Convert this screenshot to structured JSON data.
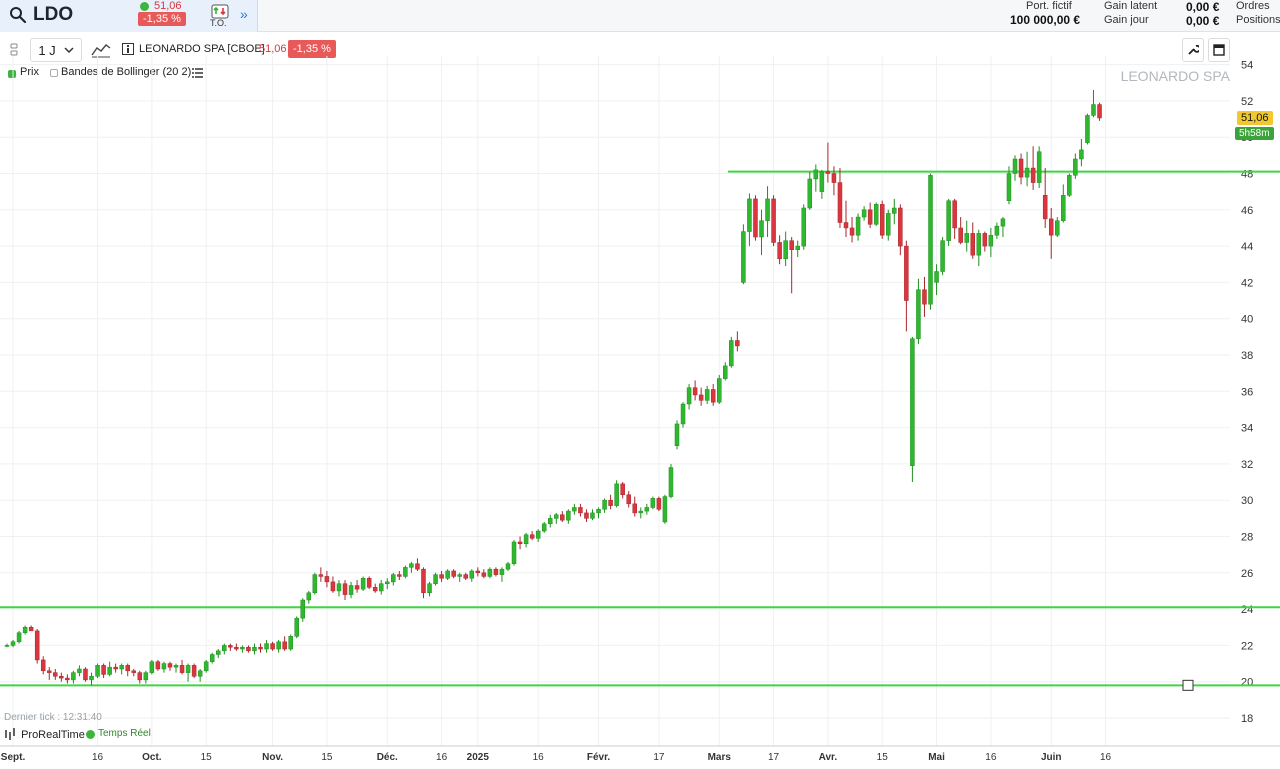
{
  "header": {
    "symbol": "LDO",
    "price": "51,06",
    "change": "-1,35 %",
    "to_label": "T.O.",
    "portfolio": {
      "label_port": "Port. fictif",
      "value_port": "100 000,00 €",
      "label_latent": "Gain latent",
      "label_day": "Gain jour",
      "value_latent": "0,00 €",
      "value_day": "0,00 €",
      "label_orders": "Ordres",
      "label_positions": "Positions"
    }
  },
  "toolbar": {
    "timeframe": "1 J",
    "instrument": "LEONARDO SPA [CBOE]",
    "price": "51,06",
    "change": "-1,35 %"
  },
  "legend": {
    "price_label": "Prix",
    "bollinger_label": "Bandes de Bollinger (20 2)"
  },
  "watermark": "LEONARDO SPA",
  "footer": {
    "last_tick": "Dernier tick : 12:31:40",
    "brand": "ProRealTime",
    "realtime": "Temps Réel"
  },
  "price_tag": "51,06",
  "time_tag": "5h58m",
  "colors": {
    "up": "#2fb82f",
    "down": "#d9363e",
    "level": "#41d341",
    "tag": "#f2c830"
  },
  "chart_data": {
    "type": "candlestick",
    "y_axis": {
      "min": 18,
      "max": 54,
      "ticks": [
        18,
        20,
        22,
        24,
        26,
        28,
        30,
        32,
        34,
        36,
        38,
        40,
        42,
        44,
        46,
        48,
        50,
        52,
        54
      ],
      "position": "right"
    },
    "x_axis": {
      "labels": [
        "Sept.",
        "16",
        "Oct.",
        "15",
        "Nov.",
        "15",
        "Déc.",
        "16",
        "2025",
        "16",
        "Févr.",
        "17",
        "Mars",
        "17",
        "Avr.",
        "15",
        "Mai",
        "16",
        "Juin",
        "16"
      ],
      "label_index": [
        1,
        15,
        24,
        33,
        44,
        53,
        63,
        72,
        78,
        88,
        98,
        108,
        118,
        127,
        136,
        145,
        154,
        163,
        173,
        182
      ]
    },
    "horizontal_levels": [
      48.1,
      24.1,
      19.8
    ],
    "candles": [
      [
        22.0,
        22.1,
        21.9,
        22.0
      ],
      [
        22.0,
        22.3,
        21.9,
        22.2
      ],
      [
        22.2,
        22.8,
        22.1,
        22.7
      ],
      [
        22.7,
        23.1,
        22.6,
        23.0
      ],
      [
        23.0,
        23.1,
        22.8,
        22.8
      ],
      [
        22.8,
        22.9,
        21.0,
        21.2
      ],
      [
        21.2,
        21.4,
        20.4,
        20.6
      ],
      [
        20.6,
        20.8,
        20.1,
        20.5
      ],
      [
        20.5,
        20.7,
        20.1,
        20.3
      ],
      [
        20.3,
        20.5,
        20.0,
        20.2
      ],
      [
        20.2,
        20.4,
        19.9,
        20.1
      ],
      [
        20.1,
        20.6,
        19.9,
        20.5
      ],
      [
        20.5,
        20.9,
        20.3,
        20.7
      ],
      [
        20.7,
        20.8,
        20.0,
        20.1
      ],
      [
        20.1,
        20.5,
        19.8,
        20.3
      ],
      [
        20.3,
        21.0,
        20.2,
        20.9
      ],
      [
        20.9,
        21.0,
        20.2,
        20.4
      ],
      [
        20.4,
        21.1,
        20.3,
        20.8
      ],
      [
        20.8,
        21.0,
        20.5,
        20.7
      ],
      [
        20.7,
        21.0,
        20.4,
        20.9
      ],
      [
        20.9,
        21.0,
        20.3,
        20.6
      ],
      [
        20.6,
        20.7,
        20.3,
        20.5
      ],
      [
        20.5,
        20.6,
        19.9,
        20.1
      ],
      [
        20.1,
        20.6,
        19.9,
        20.5
      ],
      [
        20.5,
        21.2,
        20.4,
        21.1
      ],
      [
        21.1,
        21.2,
        20.6,
        20.7
      ],
      [
        20.7,
        21.1,
        20.5,
        21.0
      ],
      [
        21.0,
        21.1,
        20.6,
        20.8
      ],
      [
        20.8,
        21.0,
        20.5,
        20.9
      ],
      [
        20.9,
        21.2,
        20.4,
        20.5
      ],
      [
        20.5,
        21.0,
        20.0,
        20.9
      ],
      [
        20.9,
        21.0,
        20.2,
        20.3
      ],
      [
        20.3,
        20.7,
        20.0,
        20.6
      ],
      [
        20.6,
        21.2,
        20.5,
        21.1
      ],
      [
        21.1,
        21.6,
        21.0,
        21.5
      ],
      [
        21.5,
        21.8,
        21.3,
        21.7
      ],
      [
        21.7,
        22.1,
        21.5,
        22.0
      ],
      [
        22.0,
        22.1,
        21.7,
        21.9
      ],
      [
        21.9,
        22.1,
        21.7,
        21.8
      ],
      [
        21.8,
        22.0,
        21.6,
        21.9
      ],
      [
        21.9,
        22.0,
        21.6,
        21.7
      ],
      [
        21.7,
        22.1,
        21.5,
        21.9
      ],
      [
        21.9,
        22.1,
        21.6,
        21.8
      ],
      [
        21.8,
        22.3,
        21.6,
        22.1
      ],
      [
        22.1,
        22.2,
        21.7,
        21.8
      ],
      [
        21.8,
        22.3,
        21.6,
        22.2
      ],
      [
        22.2,
        22.5,
        21.7,
        21.8
      ],
      [
        21.8,
        22.6,
        21.7,
        22.5
      ],
      [
        22.5,
        23.6,
        22.4,
        23.5
      ],
      [
        23.5,
        24.6,
        23.3,
        24.5
      ],
      [
        24.5,
        25.0,
        24.3,
        24.9
      ],
      [
        24.9,
        26.0,
        24.8,
        25.9
      ],
      [
        25.9,
        26.3,
        25.5,
        25.8
      ],
      [
        25.8,
        26.1,
        25.2,
        25.5
      ],
      [
        25.5,
        25.8,
        24.9,
        25.0
      ],
      [
        25.0,
        25.6,
        24.7,
        25.4
      ],
      [
        25.4,
        25.6,
        24.5,
        24.8
      ],
      [
        24.8,
        25.5,
        24.6,
        25.3
      ],
      [
        25.3,
        25.6,
        24.9,
        25.1
      ],
      [
        25.1,
        25.8,
        25.0,
        25.7
      ],
      [
        25.7,
        25.8,
        25.1,
        25.2
      ],
      [
        25.2,
        25.4,
        24.9,
        25.0
      ],
      [
        25.0,
        25.6,
        24.8,
        25.4
      ],
      [
        25.4,
        25.7,
        25.1,
        25.5
      ],
      [
        25.5,
        26.0,
        25.3,
        25.9
      ],
      [
        25.9,
        26.1,
        25.6,
        25.8
      ],
      [
        25.8,
        26.4,
        25.7,
        26.3
      ],
      [
        26.3,
        26.6,
        26.0,
        26.5
      ],
      [
        26.5,
        26.8,
        26.1,
        26.2
      ],
      [
        26.2,
        26.3,
        24.6,
        24.9
      ],
      [
        24.9,
        25.5,
        24.7,
        25.4
      ],
      [
        25.4,
        26.0,
        25.3,
        25.9
      ],
      [
        25.9,
        26.1,
        25.5,
        25.7
      ],
      [
        25.7,
        26.2,
        25.6,
        26.1
      ],
      [
        26.1,
        26.2,
        25.7,
        25.8
      ],
      [
        25.8,
        26.0,
        25.5,
        25.9
      ],
      [
        25.9,
        26.0,
        25.6,
        25.7
      ],
      [
        25.7,
        26.2,
        25.5,
        26.1
      ],
      [
        26.1,
        26.3,
        25.8,
        26.0
      ],
      [
        26.0,
        26.2,
        25.7,
        25.8
      ],
      [
        25.8,
        26.3,
        25.7,
        26.2
      ],
      [
        26.2,
        26.3,
        25.8,
        25.9
      ],
      [
        25.9,
        26.3,
        25.5,
        26.2
      ],
      [
        26.2,
        26.6,
        26.1,
        26.5
      ],
      [
        26.5,
        27.8,
        26.4,
        27.7
      ],
      [
        27.7,
        28.0,
        27.3,
        27.6
      ],
      [
        27.6,
        28.2,
        27.4,
        28.1
      ],
      [
        28.1,
        28.3,
        27.8,
        27.9
      ],
      [
        27.9,
        28.4,
        27.7,
        28.3
      ],
      [
        28.3,
        28.8,
        28.2,
        28.7
      ],
      [
        28.7,
        29.2,
        28.5,
        29.0
      ],
      [
        29.0,
        29.3,
        28.7,
        29.2
      ],
      [
        29.2,
        29.4,
        28.8,
        28.9
      ],
      [
        28.9,
        29.5,
        28.7,
        29.4
      ],
      [
        29.4,
        29.8,
        29.2,
        29.6
      ],
      [
        29.6,
        29.8,
        29.1,
        29.3
      ],
      [
        29.3,
        29.5,
        28.8,
        29.0
      ],
      [
        29.0,
        29.5,
        28.9,
        29.3
      ],
      [
        29.3,
        29.6,
        29.0,
        29.5
      ],
      [
        29.5,
        30.1,
        29.3,
        30.0
      ],
      [
        30.0,
        30.3,
        29.5,
        29.7
      ],
      [
        29.7,
        31.1,
        29.6,
        30.9
      ],
      [
        30.9,
        31.0,
        30.1,
        30.3
      ],
      [
        30.3,
        30.5,
        29.6,
        29.8
      ],
      [
        29.8,
        30.2,
        29.1,
        29.3
      ],
      [
        29.3,
        29.6,
        29.0,
        29.4
      ],
      [
        29.4,
        29.8,
        29.2,
        29.6
      ],
      [
        29.6,
        30.2,
        29.5,
        30.1
      ],
      [
        30.1,
        30.2,
        29.4,
        29.5
      ],
      [
        28.8,
        30.3,
        28.7,
        30.2
      ],
      [
        30.2,
        32.0,
        30.1,
        31.8
      ],
      [
        33.0,
        34.4,
        32.8,
        34.2
      ],
      [
        34.2,
        35.4,
        34.0,
        35.3
      ],
      [
        35.3,
        36.4,
        35.0,
        36.2
      ],
      [
        36.2,
        36.6,
        35.5,
        35.8
      ],
      [
        35.8,
        36.2,
        35.2,
        35.5
      ],
      [
        35.5,
        36.3,
        35.3,
        36.1
      ],
      [
        36.1,
        36.4,
        35.2,
        35.4
      ],
      [
        35.4,
        36.9,
        35.3,
        36.7
      ],
      [
        36.7,
        37.6,
        36.6,
        37.4
      ],
      [
        37.4,
        39.0,
        37.3,
        38.8
      ],
      [
        38.8,
        39.3,
        38.2,
        38.5
      ],
      [
        42.0,
        45.2,
        41.9,
        44.8
      ],
      [
        44.8,
        46.9,
        44.0,
        46.6
      ],
      [
        46.6,
        46.8,
        44.3,
        44.5
      ],
      [
        44.5,
        46.0,
        43.5,
        45.4
      ],
      [
        45.4,
        47.3,
        44.5,
        46.6
      ],
      [
        46.6,
        46.8,
        44.0,
        44.2
      ],
      [
        44.2,
        44.6,
        43.0,
        43.3
      ],
      [
        43.3,
        44.8,
        42.9,
        44.3
      ],
      [
        44.3,
        44.5,
        41.4,
        43.8
      ],
      [
        43.8,
        44.3,
        43.4,
        44.0
      ],
      [
        44.0,
        46.3,
        43.8,
        46.1
      ],
      [
        46.1,
        48.1,
        46.0,
        47.7
      ],
      [
        47.7,
        48.5,
        47.0,
        48.2
      ],
      [
        47.0,
        48.2,
        46.6,
        48.1
      ],
      [
        48.1,
        49.7,
        47.5,
        48.0
      ],
      [
        48.0,
        48.4,
        46.8,
        47.5
      ],
      [
        47.5,
        48.3,
        45.0,
        45.3
      ],
      [
        45.3,
        46.5,
        44.5,
        45.0
      ],
      [
        45.0,
        45.6,
        44.2,
        44.6
      ],
      [
        44.6,
        45.8,
        44.3,
        45.6
      ],
      [
        45.6,
        46.2,
        45.4,
        46.0
      ],
      [
        46.0,
        46.4,
        45.0,
        45.2
      ],
      [
        45.2,
        46.4,
        45.1,
        46.3
      ],
      [
        46.3,
        46.5,
        44.4,
        44.6
      ],
      [
        44.6,
        46.0,
        44.3,
        45.8
      ],
      [
        45.8,
        46.6,
        45.2,
        46.1
      ],
      [
        46.1,
        46.3,
        43.5,
        44.0
      ],
      [
        44.0,
        44.3,
        39.3,
        41.0
      ],
      [
        31.9,
        39.0,
        31.0,
        38.9
      ],
      [
        38.9,
        42.2,
        38.6,
        41.6
      ],
      [
        41.6,
        42.3,
        40.1,
        40.8
      ],
      [
        40.8,
        48.0,
        40.5,
        47.9
      ],
      [
        42.0,
        43.0,
        41.3,
        42.6
      ],
      [
        42.6,
        44.5,
        42.4,
        44.3
      ],
      [
        44.3,
        46.6,
        44.0,
        46.5
      ],
      [
        46.5,
        46.6,
        44.4,
        45.0
      ],
      [
        45.0,
        45.6,
        44.1,
        44.2
      ],
      [
        44.2,
        45.4,
        43.7,
        44.7
      ],
      [
        44.7,
        45.3,
        43.3,
        43.5
      ],
      [
        43.5,
        44.9,
        42.9,
        44.7
      ],
      [
        44.7,
        44.8,
        43.7,
        44.0
      ],
      [
        44.0,
        45.0,
        43.4,
        44.6
      ],
      [
        44.6,
        45.3,
        44.4,
        45.1
      ],
      [
        45.1,
        45.6,
        44.5,
        45.5
      ],
      [
        46.5,
        48.4,
        46.3,
        48.0
      ],
      [
        48.0,
        49.0,
        47.6,
        48.8
      ],
      [
        48.8,
        49.1,
        47.4,
        47.8
      ],
      [
        47.8,
        49.2,
        47.3,
        48.3
      ],
      [
        48.3,
        49.5,
        47.1,
        47.5
      ],
      [
        47.5,
        49.5,
        47.2,
        49.2
      ],
      [
        46.8,
        48.3,
        45.0,
        45.5
      ],
      [
        45.5,
        46.1,
        43.3,
        44.6
      ],
      [
        44.6,
        45.6,
        44.5,
        45.4
      ],
      [
        45.4,
        47.4,
        45.3,
        46.8
      ],
      [
        46.8,
        48.0,
        46.7,
        47.9
      ],
      [
        47.9,
        49.1,
        47.7,
        48.8
      ],
      [
        48.8,
        49.9,
        48.4,
        49.3
      ],
      [
        49.7,
        51.3,
        49.6,
        51.2
      ],
      [
        51.2,
        52.6,
        51.1,
        51.8
      ],
      [
        51.8,
        51.9,
        50.9,
        51.06
      ]
    ]
  }
}
